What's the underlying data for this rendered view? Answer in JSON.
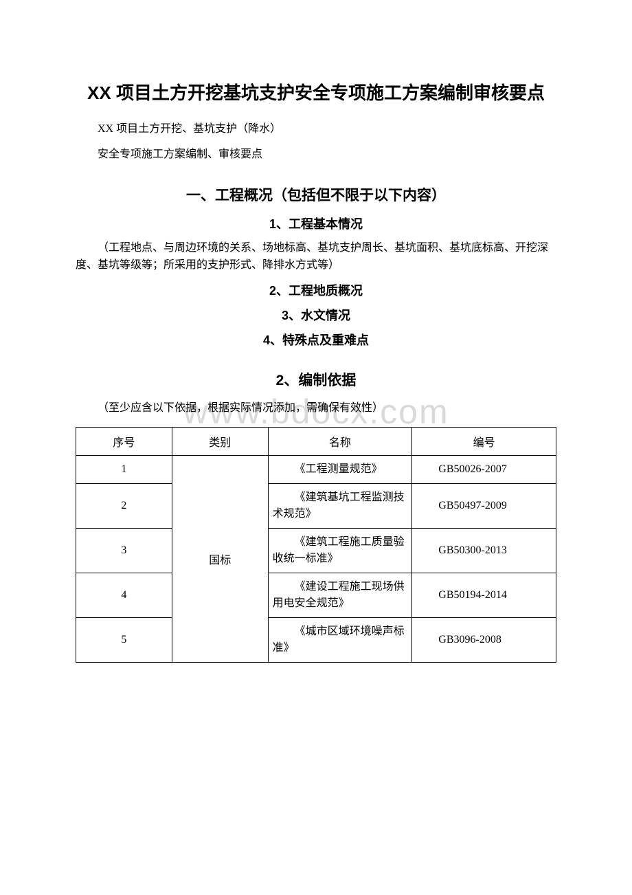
{
  "watermark": "www.bdocx.com",
  "mainTitle": "XX 项目土方开挖基坑支护安全专项施工方案编制审核要点",
  "intro1": "XX 项目土方开挖、基坑支护（降水）",
  "intro2": "安全专项施工方案编制、审核要点",
  "section1Title": "一、工程概况（包括但不限于以下内容）",
  "sub1_1": "1、工程基本情况",
  "para1_1": "（工程地点、与周边环境的关系、场地标高、基坑支护周长、基坑面积、基坑底标高、开挖深度、基坑等级等；所采用的支护形式、降排水方式等）",
  "sub1_2": "2、工程地质概况",
  "sub1_3": "3、水文情况",
  "sub1_4": "4、特殊点及重难点",
  "section2Title": "2、编制依据",
  "para2": "（至少应含以下依据，根据实际情况添加，需确保有效性）",
  "table": {
    "headers": [
      "序号",
      "类别",
      "名称",
      "编号"
    ],
    "categoryLabel": "国标",
    "rows": [
      {
        "seq": "1",
        "name": "《工程测量规范》",
        "code": "GB50026-2007"
      },
      {
        "seq": "2",
        "name": "《建筑基坑工程监测技术规范》",
        "code": "GB50497-2009"
      },
      {
        "seq": "3",
        "name": "《建筑工程施工质量验收统一标准》",
        "code": "GB50300-2013"
      },
      {
        "seq": "4",
        "name": "《建设工程施工现场供用电安全规范》",
        "code": "GB50194-2014"
      },
      {
        "seq": "5",
        "name": "《城市区域环境噪声标准》",
        "code": "GB3096-2008"
      }
    ]
  }
}
